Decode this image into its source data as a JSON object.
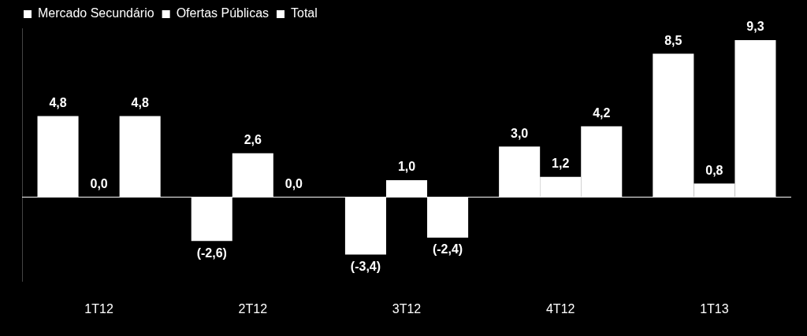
{
  "chart_data": {
    "type": "bar",
    "categories": [
      "1T12",
      "2T12",
      "3T12",
      "4T12",
      "1T13"
    ],
    "series": [
      {
        "name": "Mercado Secundário",
        "color": "#ffffff",
        "values": [
          4.8,
          -2.6,
          -3.4,
          3.0,
          8.5
        ],
        "value_labels": [
          "4,8",
          "(-2,6)",
          "(-3,4)",
          "3,0",
          "8,5"
        ]
      },
      {
        "name": "Ofertas Públicas",
        "color": "#ffffff",
        "values": [
          0.0,
          2.6,
          1.0,
          1.2,
          0.8
        ],
        "value_labels": [
          "0,0",
          "2,6",
          "1,0",
          "1,2",
          "0,8"
        ]
      },
      {
        "name": "Total",
        "color": "#ffffff",
        "values": [
          4.8,
          0.0,
          -2.4,
          4.2,
          9.3
        ],
        "value_labels": [
          "4,8",
          "0,0",
          "(-2,4)",
          "4,2",
          "9,3"
        ]
      }
    ],
    "ylim": [
      -5,
      10
    ],
    "yticks": [],
    "grid": false,
    "legend": "top-left",
    "data_labels": true,
    "tick_labels": "x"
  }
}
